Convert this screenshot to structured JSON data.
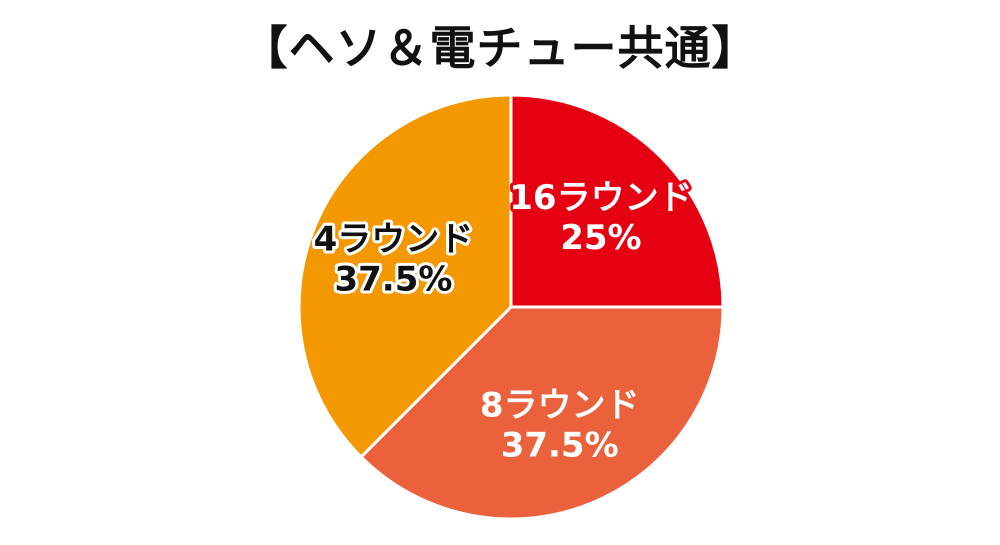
{
  "chart_data": {
    "type": "pie",
    "title": "【ヘソ＆電チュー共通】",
    "slices": [
      {
        "name": "16ラウンド",
        "value": 25,
        "label": "25%",
        "color": "#e50012",
        "text_color": "#ffffff"
      },
      {
        "name": "8ラウンド",
        "value": 37.5,
        "label": "37.5%",
        "color": "#ea613c",
        "text_color": "#ffffff"
      },
      {
        "name": "4ラウンド",
        "value": 37.5,
        "label": "37.5%",
        "color": "#f39800",
        "text_color": "#111111"
      }
    ],
    "start_angle": "12 o'clock",
    "direction": "clockwise",
    "legend": "none"
  }
}
